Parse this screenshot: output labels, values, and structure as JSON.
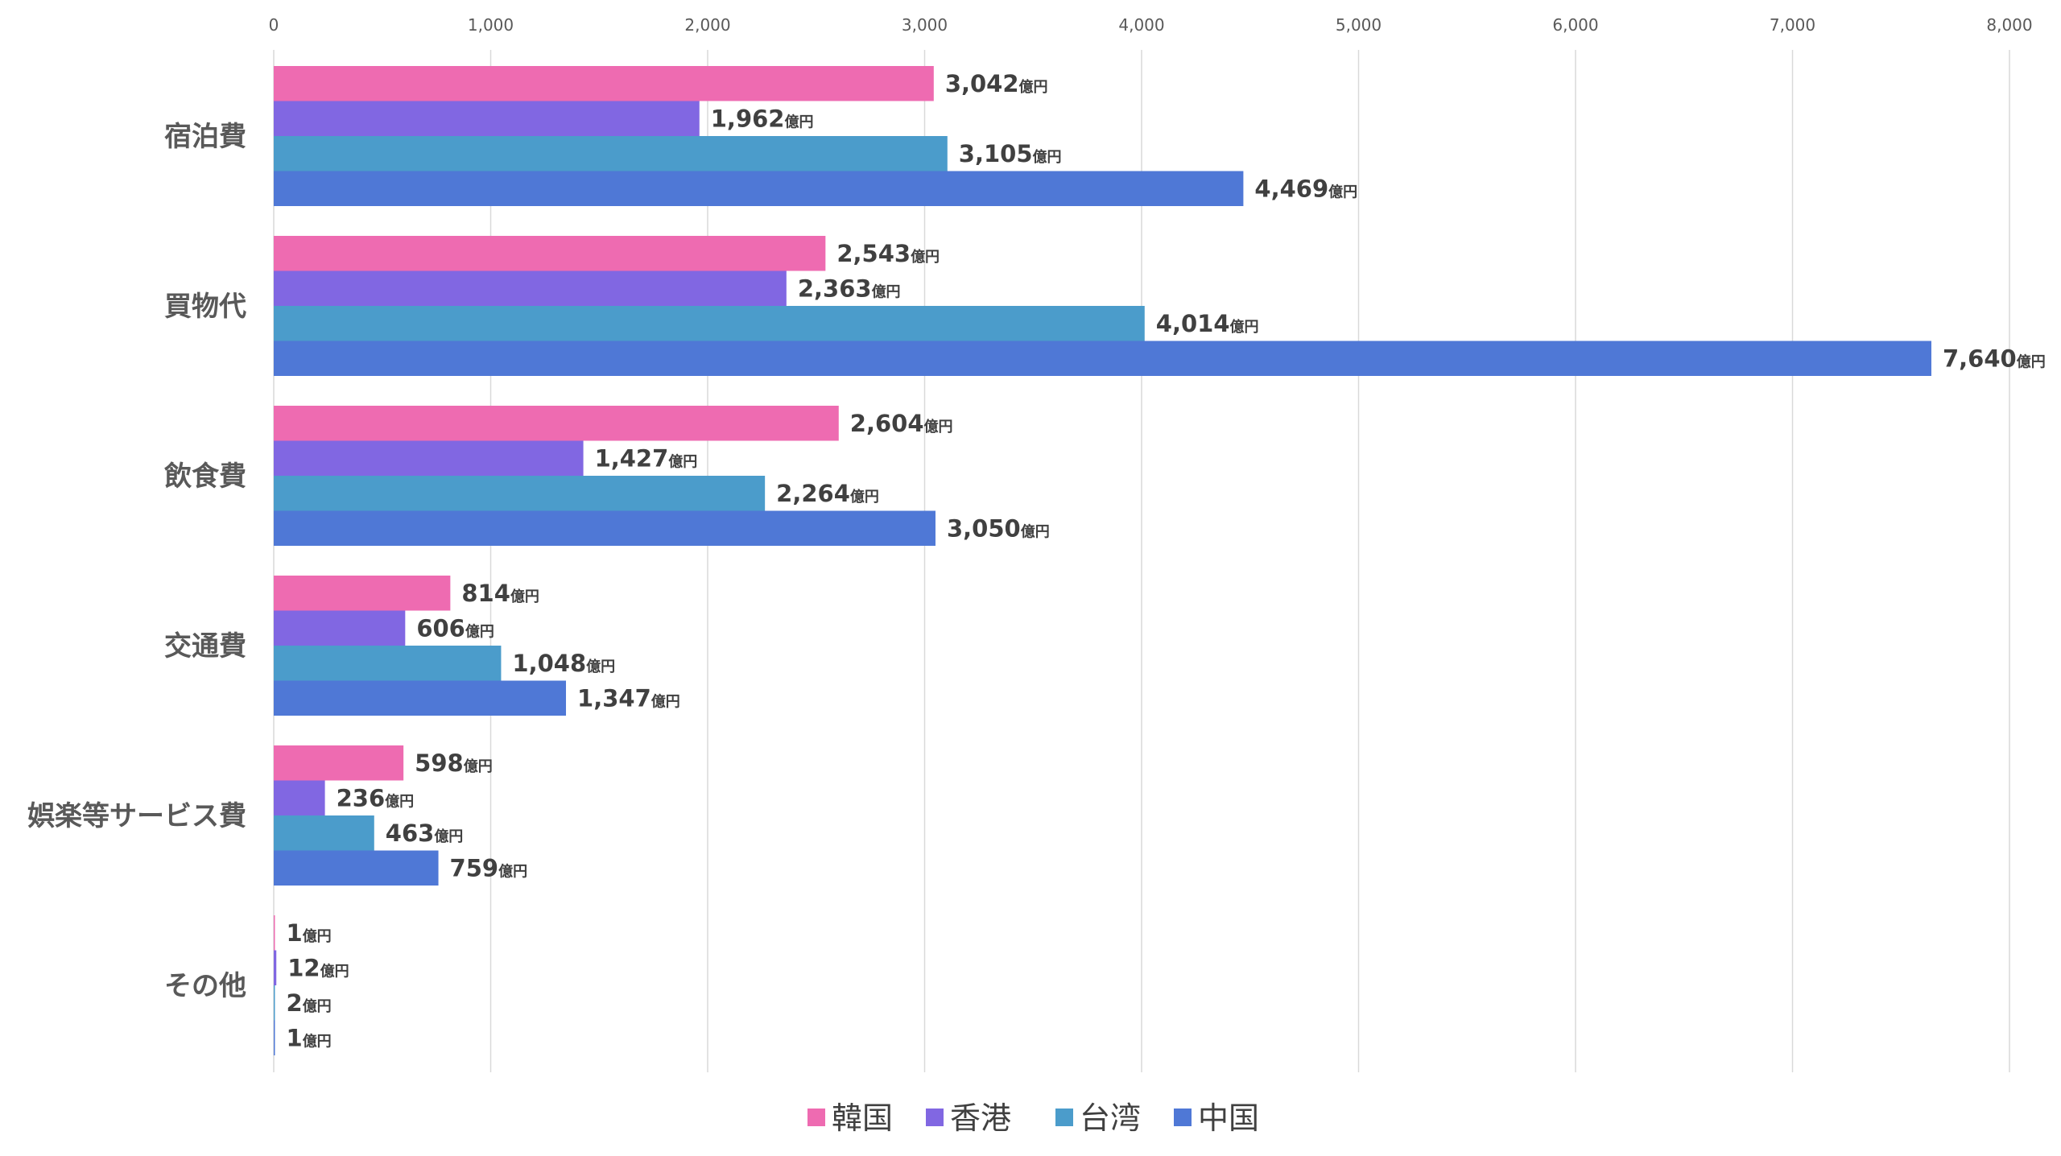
{
  "chart_data": {
    "type": "bar",
    "orientation": "horizontal",
    "categories": [
      "宿泊費",
      "買物代",
      "飲食費",
      "交通費",
      "娯楽等サービス費",
      "その他"
    ],
    "series": [
      {
        "name": "韓国",
        "color": "#ee6bb1",
        "values": [
          3042,
          2543,
          2604,
          814,
          598,
          1
        ],
        "labels": [
          "3,042",
          "2,543",
          "2,604",
          "814",
          "598",
          "1"
        ]
      },
      {
        "name": "香港",
        "color": "#8167e2",
        "values": [
          1962,
          2363,
          1427,
          606,
          236,
          12
        ],
        "labels": [
          "1,962",
          "2,363",
          "1,427",
          "606",
          "236",
          "12"
        ]
      },
      {
        "name": "台湾",
        "color": "#4b9ccb",
        "values": [
          3105,
          4014,
          2264,
          1048,
          463,
          2
        ],
        "labels": [
          "3,105",
          "4,014",
          "2,264",
          "1,048",
          "463",
          "2"
        ]
      },
      {
        "name": "中国",
        "color": "#4f78d6",
        "values": [
          4469,
          7640,
          3050,
          1347,
          759,
          1
        ],
        "labels": [
          "4,469",
          "7,640",
          "3,050",
          "1,347",
          "759",
          "1"
        ]
      }
    ],
    "value_unit": "億円",
    "xlim": [
      0,
      8000
    ],
    "x_ticks": [
      0,
      1000,
      2000,
      3000,
      4000,
      5000,
      6000,
      7000,
      8000
    ],
    "x_tick_labels": [
      "0",
      "1,000",
      "2,000",
      "3,000",
      "4,000",
      "5,000",
      "6,000",
      "7,000",
      "8,000"
    ],
    "x_axis_position": "top",
    "grid": "vertical",
    "legend_position": "bottom"
  }
}
